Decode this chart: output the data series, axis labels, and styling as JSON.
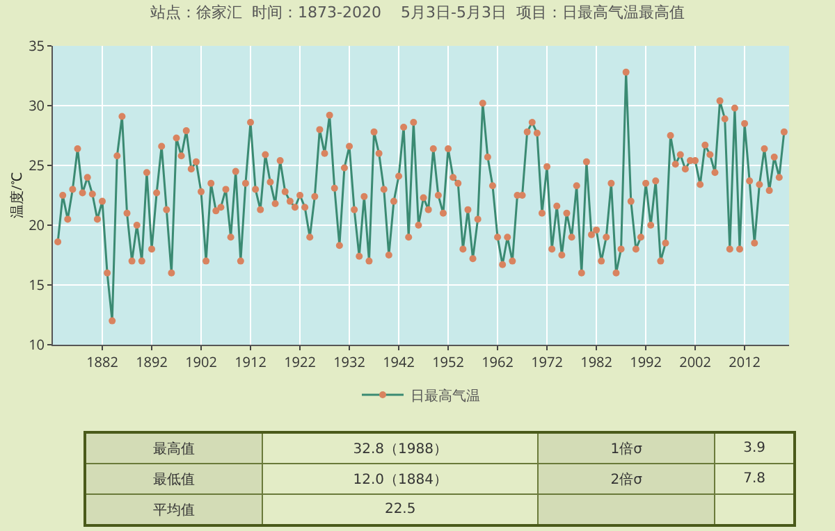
{
  "chart_data": {
    "type": "line",
    "title": "站点：徐家汇  时间：1873-2020    5月3日-5月3日  项目：日最高气温最高值",
    "ylabel": "温度/℃",
    "x": [
      1873,
      1874,
      1875,
      1876,
      1877,
      1878,
      1879,
      1880,
      1881,
      1882,
      1883,
      1884,
      1885,
      1886,
      1887,
      1888,
      1889,
      1890,
      1891,
      1892,
      1893,
      1894,
      1895,
      1896,
      1897,
      1898,
      1899,
      1900,
      1901,
      1902,
      1903,
      1904,
      1905,
      1906,
      1907,
      1908,
      1909,
      1910,
      1911,
      1912,
      1913,
      1914,
      1915,
      1916,
      1917,
      1918,
      1919,
      1920,
      1921,
      1922,
      1923,
      1924,
      1925,
      1926,
      1927,
      1928,
      1929,
      1930,
      1931,
      1932,
      1933,
      1934,
      1935,
      1936,
      1937,
      1938,
      1939,
      1940,
      1941,
      1942,
      1943,
      1944,
      1945,
      1946,
      1947,
      1948,
      1949,
      1950,
      1951,
      1952,
      1953,
      1954,
      1955,
      1956,
      1957,
      1958,
      1959,
      1960,
      1961,
      1962,
      1963,
      1964,
      1965,
      1966,
      1967,
      1968,
      1969,
      1970,
      1971,
      1972,
      1973,
      1974,
      1975,
      1976,
      1977,
      1978,
      1979,
      1980,
      1981,
      1982,
      1983,
      1984,
      1985,
      1986,
      1987,
      1988,
      1989,
      1990,
      1991,
      1992,
      1993,
      1994,
      1995,
      1996,
      1997,
      1998,
      1999,
      2000,
      2001,
      2002,
      2003,
      2004,
      2005,
      2006,
      2007,
      2008,
      2009,
      2010,
      2011,
      2012,
      2013,
      2014,
      2015,
      2016,
      2017,
      2018,
      2019,
      2020
    ],
    "series": [
      {
        "name": "日最高气温",
        "color": "#3a8a72",
        "values": [
          18.6,
          22.5,
          20.5,
          23.0,
          26.4,
          22.7,
          24.0,
          22.6,
          20.5,
          22.0,
          16.0,
          12.0,
          25.8,
          29.1,
          21.0,
          17.0,
          20.0,
          17.0,
          24.4,
          18.0,
          22.7,
          26.6,
          21.3,
          16.0,
          27.3,
          25.8,
          27.9,
          24.7,
          25.3,
          22.8,
          17.0,
          23.5,
          21.2,
          21.5,
          23.0,
          19.0,
          24.5,
          17.0,
          23.5,
          28.6,
          23.0,
          21.3,
          25.9,
          23.6,
          21.8,
          25.4,
          22.8,
          22.0,
          21.5,
          22.5,
          21.5,
          19.0,
          22.4,
          28.0,
          26.0,
          29.2,
          23.1,
          18.3,
          24.8,
          26.6,
          21.3,
          17.4,
          22.4,
          17.0,
          27.8,
          26.0,
          23.0,
          17.5,
          22.0,
          24.1,
          28.2,
          19.0,
          28.6,
          20.0,
          22.3,
          21.3,
          26.4,
          22.5,
          21.0,
          26.4,
          24.0,
          23.5,
          18.0,
          21.3,
          17.2,
          20.5,
          30.2,
          25.7,
          23.3,
          19.0,
          16.7,
          19.0,
          17.0,
          22.5,
          22.5,
          27.8,
          28.6,
          27.7,
          21.0,
          24.9,
          18.0,
          21.6,
          17.5,
          21.0,
          19.0,
          23.3,
          16.0,
          25.3,
          19.2,
          19.6,
          17.0,
          19.0,
          23.5,
          16.0,
          18.0,
          32.8,
          22.0,
          18.0,
          19.0,
          23.5,
          20.0,
          23.7,
          17.0,
          18.5,
          27.5,
          25.1,
          25.9,
          24.7,
          25.4,
          25.4,
          23.4,
          26.7,
          25.9,
          24.4,
          30.4,
          28.9,
          18.0,
          29.8,
          18.0,
          28.5,
          23.7,
          18.5,
          23.4,
          26.4,
          22.9,
          25.7,
          24.0,
          27.8
        ]
      }
    ],
    "xlim": [
      1872,
      2021
    ],
    "xticks": [
      1882,
      1892,
      1902,
      1912,
      1922,
      1932,
      1942,
      1952,
      1962,
      1972,
      1982,
      1992,
      2002,
      2012
    ],
    "ylim": [
      10,
      35
    ],
    "yticks": [
      10,
      15,
      20,
      25,
      30,
      35
    ],
    "grid": true,
    "legend": "bottom",
    "marker": "circle",
    "annotations": [
      "最高值",
      "32.8（1988）",
      "1倍σ",
      "3.9",
      "最低值",
      "12.0（1884）",
      "2倍σ",
      "7.8",
      "平均值",
      "22.5"
    ]
  }
}
